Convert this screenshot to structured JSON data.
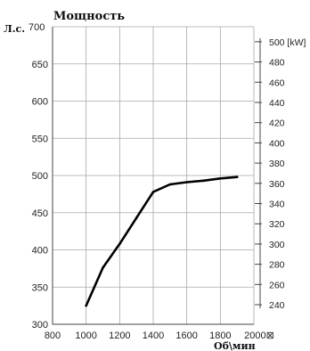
{
  "chart_data": {
    "type": "line",
    "title": "Мощность",
    "ylabel": "Л.с.",
    "xlabel": "Об\\мин",
    "xlim": [
      800,
      2000
    ],
    "ylim": [
      300,
      700
    ],
    "x_ticks": [
      800,
      1000,
      1200,
      1400,
      1600,
      1800,
      2000
    ],
    "x_tick_suffix": "⊠",
    "y_ticks": [
      700,
      650,
      600,
      550,
      500,
      450,
      400,
      350,
      300
    ],
    "right_axis": {
      "unit_label": "[kW]",
      "ticks": [
        500,
        480,
        460,
        440,
        420,
        400,
        380,
        360,
        340,
        320,
        300,
        280,
        260,
        240
      ],
      "hp_per_kw": 1.35962
    },
    "grid": true,
    "series": [
      {
        "x": [
          1000,
          1100,
          1200,
          1300,
          1400,
          1500,
          1600,
          1700,
          1800,
          1900
        ],
        "values": [
          325,
          376,
          408,
          443,
          478,
          488,
          491,
          493,
          496,
          498
        ]
      }
    ],
    "colors": {
      "line": "#000000",
      "grid": "#a8a8a8",
      "axis": "#444444"
    }
  }
}
